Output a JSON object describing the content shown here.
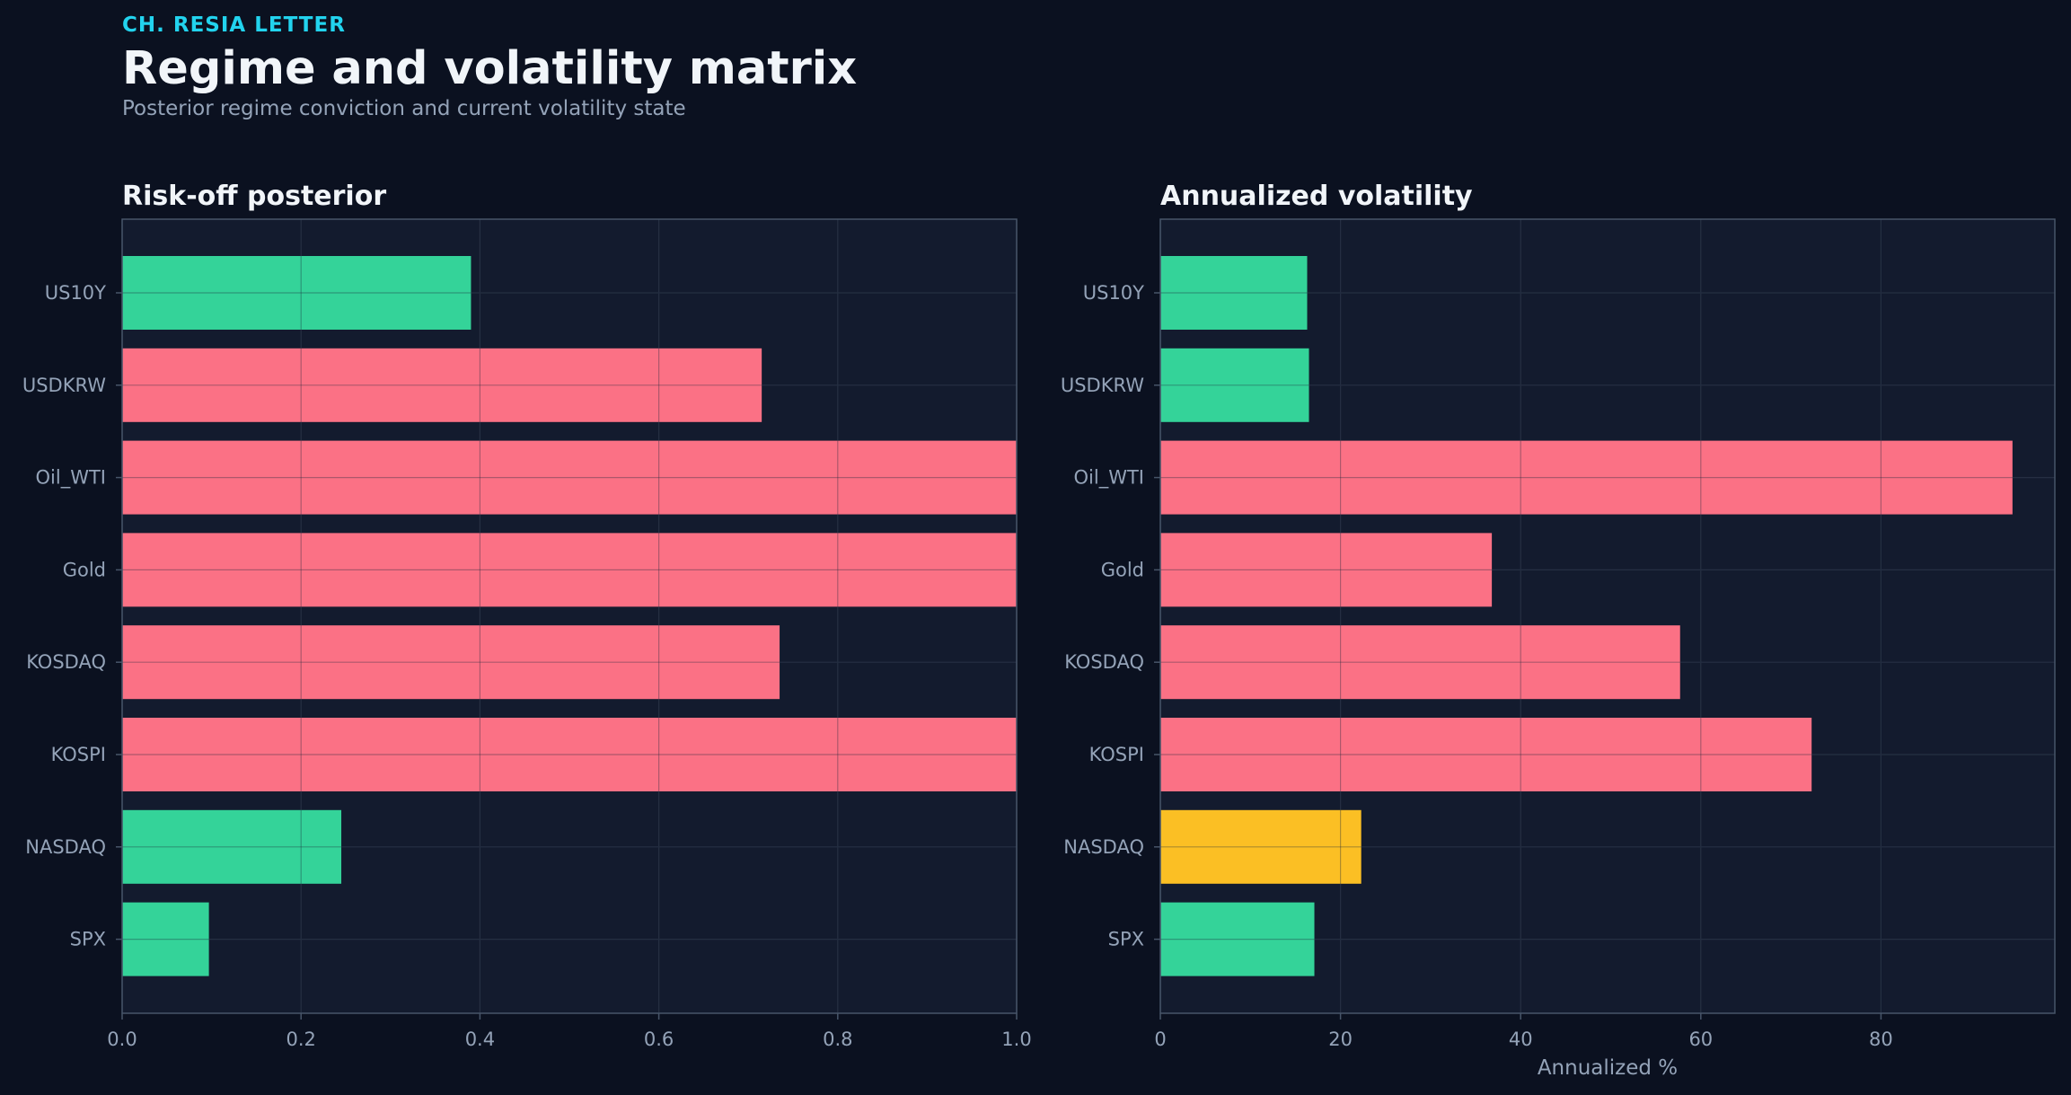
{
  "header": {
    "kicker": "CH. RESIA LETTER",
    "title": "Regime and volatility matrix",
    "subtitle": "Posterior regime conviction and current volatility state"
  },
  "colors": {
    "background": "#0b1120",
    "panel": "#131b2e",
    "grid": "#2a3346",
    "axis": "#475569",
    "tick_text": "#94a3b8",
    "green": "#34d399",
    "red": "#fb7185",
    "amber": "#fbbf24"
  },
  "chart_data": [
    {
      "type": "bar",
      "orientation": "horizontal",
      "title": "Risk-off posterior",
      "xlabel": "",
      "categories": [
        "US10Y",
        "USDKRW",
        "Oil_WTI",
        "Gold",
        "KOSDAQ",
        "KOSPI",
        "NASDAQ",
        "SPX"
      ],
      "values": [
        0.39,
        0.715,
        1.0,
        1.0,
        0.735,
        1.0,
        0.245,
        0.097
      ],
      "bar_colors": [
        "green",
        "red",
        "red",
        "red",
        "red",
        "red",
        "green",
        "green"
      ],
      "xlim": [
        0,
        1.0
      ],
      "xticks": [
        0.0,
        0.2,
        0.4,
        0.6,
        0.8,
        1.0
      ],
      "xtick_labels": [
        "0.0",
        "0.2",
        "0.4",
        "0.6",
        "0.8",
        "1.0"
      ],
      "grid": true
    },
    {
      "type": "bar",
      "orientation": "horizontal",
      "title": "Annualized volatility",
      "xlabel": "Annualized %",
      "categories": [
        "US10Y",
        "USDKRW",
        "Oil_WTI",
        "Gold",
        "KOSDAQ",
        "KOSPI",
        "NASDAQ",
        "SPX"
      ],
      "values": [
        16.3,
        16.5,
        94.6,
        36.8,
        57.7,
        72.3,
        22.3,
        17.1
      ],
      "bar_colors": [
        "green",
        "green",
        "red",
        "red",
        "red",
        "red",
        "amber",
        "green"
      ],
      "xlim": [
        0,
        99.3
      ],
      "xticks": [
        0,
        20,
        40,
        60,
        80
      ],
      "xtick_labels": [
        "0",
        "20",
        "40",
        "60",
        "80"
      ],
      "grid": true
    }
  ]
}
